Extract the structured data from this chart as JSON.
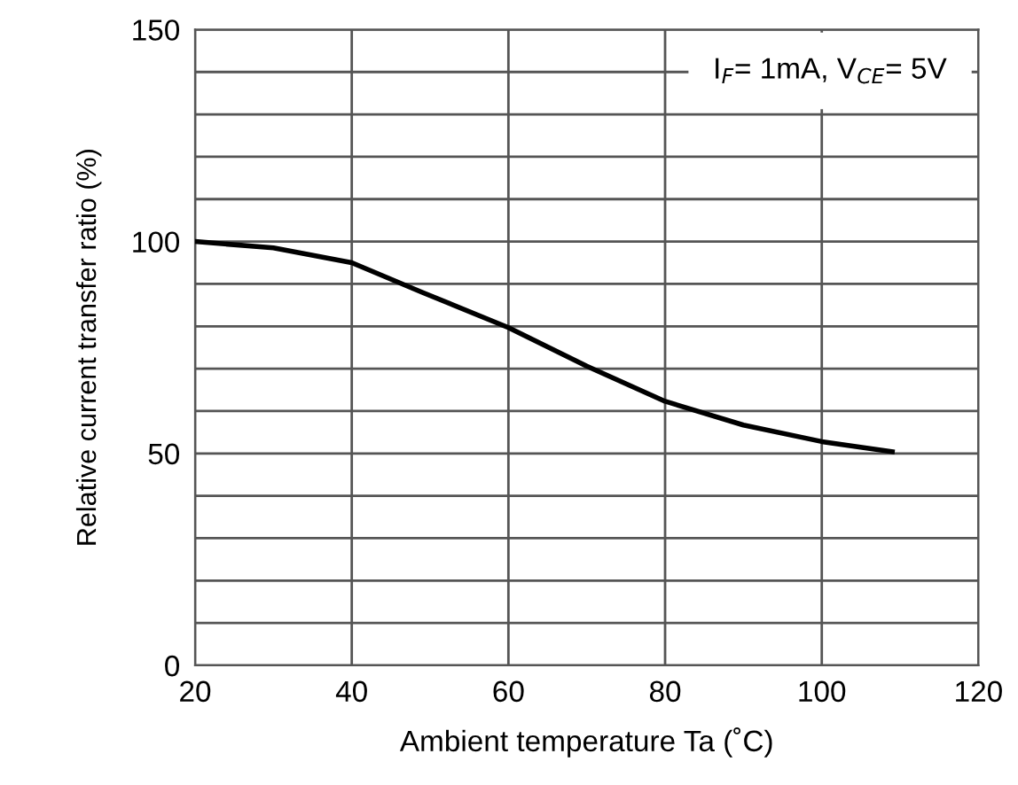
{
  "chart_data": {
    "type": "line",
    "xlabel": "Ambient temperature Ta (˚C)",
    "ylabel": "Relative current transfer ratio (%)",
    "annotations": [
      "I$_{F}$= 1mA, V$_{CE}$= 5V"
    ],
    "x": [
      20,
      30,
      40,
      49,
      60,
      70,
      80,
      90,
      100,
      109
    ],
    "series": [
      {
        "color": "#000000",
        "values": [
          100,
          98.5,
          95,
          88,
          79.7,
          70.6,
          62.3,
          56.7,
          52.8,
          50.4
        ]
      }
    ],
    "xlim": [
      20,
      120
    ],
    "xticks": [
      20,
      40,
      60,
      80,
      100,
      120
    ],
    "ylim": [
      0,
      150
    ],
    "yticks": [
      0,
      {
        "value": 10,
        "label": null
      },
      {
        "value": 20,
        "label": null
      },
      {
        "value": 30,
        "label": null
      },
      {
        "value": 40,
        "label": null
      },
      50,
      {
        "value": 60,
        "label": null
      },
      {
        "value": 70,
        "label": null
      },
      {
        "value": 80,
        "label": null
      },
      {
        "value": 90,
        "label": null
      },
      100,
      {
        "value": 110,
        "label": null
      },
      {
        "value": 120,
        "label": null
      },
      {
        "value": 130,
        "label": null
      },
      {
        "value": 140,
        "label": null
      },
      150
    ],
    "grid": true,
    "legend": false,
    "marker": "none",
    "line_style": "solid"
  }
}
